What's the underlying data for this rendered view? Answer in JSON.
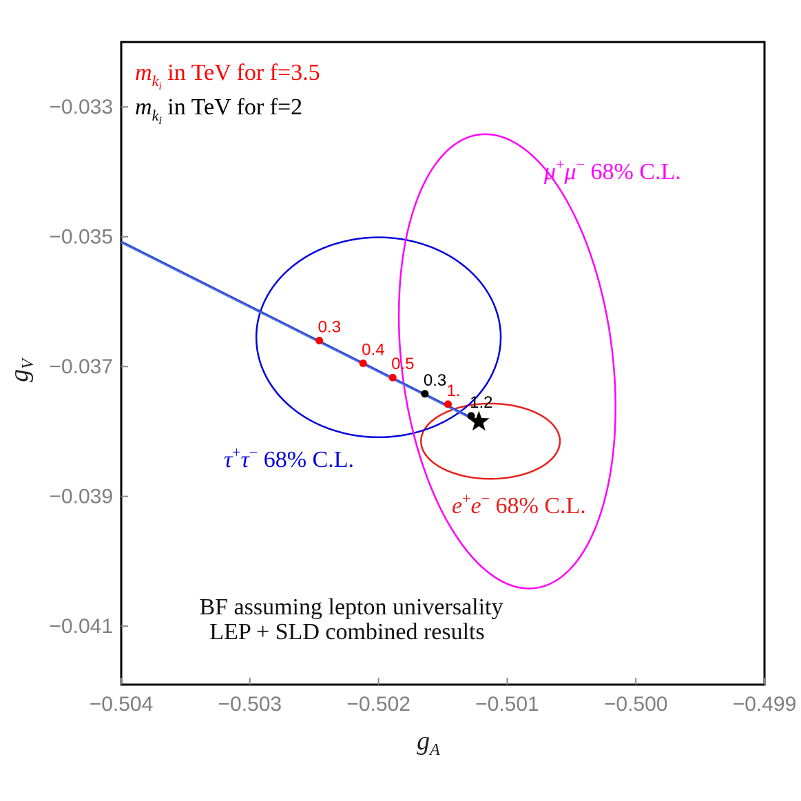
{
  "chart_data": {
    "type": "scatter",
    "xlabel": {
      "main": "g",
      "sub": "A"
    },
    "ylabel": {
      "main": "g",
      "sub": "V"
    },
    "xlim": [
      -0.504,
      -0.499
    ],
    "ylim": [
      -0.0419,
      -0.032
    ],
    "xticks": [
      -0.504,
      -0.503,
      -0.502,
      -0.501,
      -0.5,
      -0.499
    ],
    "yticks": [
      -0.033,
      -0.035,
      -0.037,
      -0.039,
      -0.041
    ],
    "xtick_labels": [
      "−0.504",
      "−0.503",
      "−0.502",
      "−0.501",
      "−0.500",
      "−0.499"
    ],
    "ytick_labels": [
      "−0.033",
      "−0.035",
      "−0.037",
      "−0.039",
      "−0.041"
    ],
    "grid": false,
    "colors": {
      "red": "#ff0000",
      "black": "#000000",
      "blue": "#0000dd",
      "magenta": "#ff00ff",
      "line": "#4d70e0"
    },
    "contours": [
      {
        "name": "e⁺e⁻ 68% C.L.",
        "color": "#e8201a",
        "cx": -0.50113,
        "cy": -0.03815,
        "rx": 0.00054,
        "ry": 0.00058,
        "angle": 0
      },
      {
        "name": "τ⁺τ⁻ 68% C.L.",
        "color": "#0000dd",
        "cx": -0.502,
        "cy": -0.03655,
        "rx": 0.00095,
        "ry": 0.00154,
        "angle": 0
      },
      {
        "name": "μ⁺μ⁻ 68% C.L.",
        "color": "#ff00ff",
        "cx": -0.501,
        "cy": -0.03692,
        "rx": 0.00082,
        "ry": 0.00352,
        "angle": -7
      }
    ],
    "trajectory": {
      "color": "#4d70e0",
      "x": [
        -0.504,
        -0.50122
      ],
      "y": [
        -0.03508,
        -0.03785
      ]
    },
    "series": [
      {
        "name": "m_{k_i} in TeV for f=3.5",
        "color": "#ff0000",
        "points": [
          {
            "x": -0.50246,
            "y": -0.0366,
            "label": "0.3"
          },
          {
            "x": -0.50212,
            "y": -0.03695,
            "label": "0.4"
          },
          {
            "x": -0.50189,
            "y": -0.03717,
            "label": "0.5"
          },
          {
            "x": -0.50146,
            "y": -0.03758,
            "label": "1."
          }
        ]
      },
      {
        "name": "m_{k_i} in TeV for f=2",
        "color": "#000000",
        "points": [
          {
            "x": -0.50164,
            "y": -0.03742,
            "label": "0.3"
          },
          {
            "x": -0.50128,
            "y": -0.03776,
            "label": "1.2"
          }
        ]
      }
    ],
    "best_fit": {
      "x": -0.50122,
      "y": -0.03785,
      "marker": "star"
    },
    "legend": {
      "placement": "top-left",
      "red": {
        "m": "m",
        "k": "k",
        "i": "i",
        "text": " in TeV for f=3.5"
      },
      "black": {
        "m": "m",
        "k": "k",
        "i": "i",
        "text": " in TeV for f=2"
      }
    },
    "annotations": {
      "mumu": {
        "a": "μ",
        "b": "μ",
        "c": " 68% C.L."
      },
      "tautau": {
        "a": "τ",
        "b": "τ",
        "c": " 68% C.L."
      },
      "ee": {
        "a": "e",
        "b": "e",
        "c": " 68% C.L."
      },
      "sup_plus": "+",
      "sup_minus": "−",
      "note_line1": "BF assuming lepton universality",
      "note_line2": "LEP + SLD combined results"
    }
  }
}
